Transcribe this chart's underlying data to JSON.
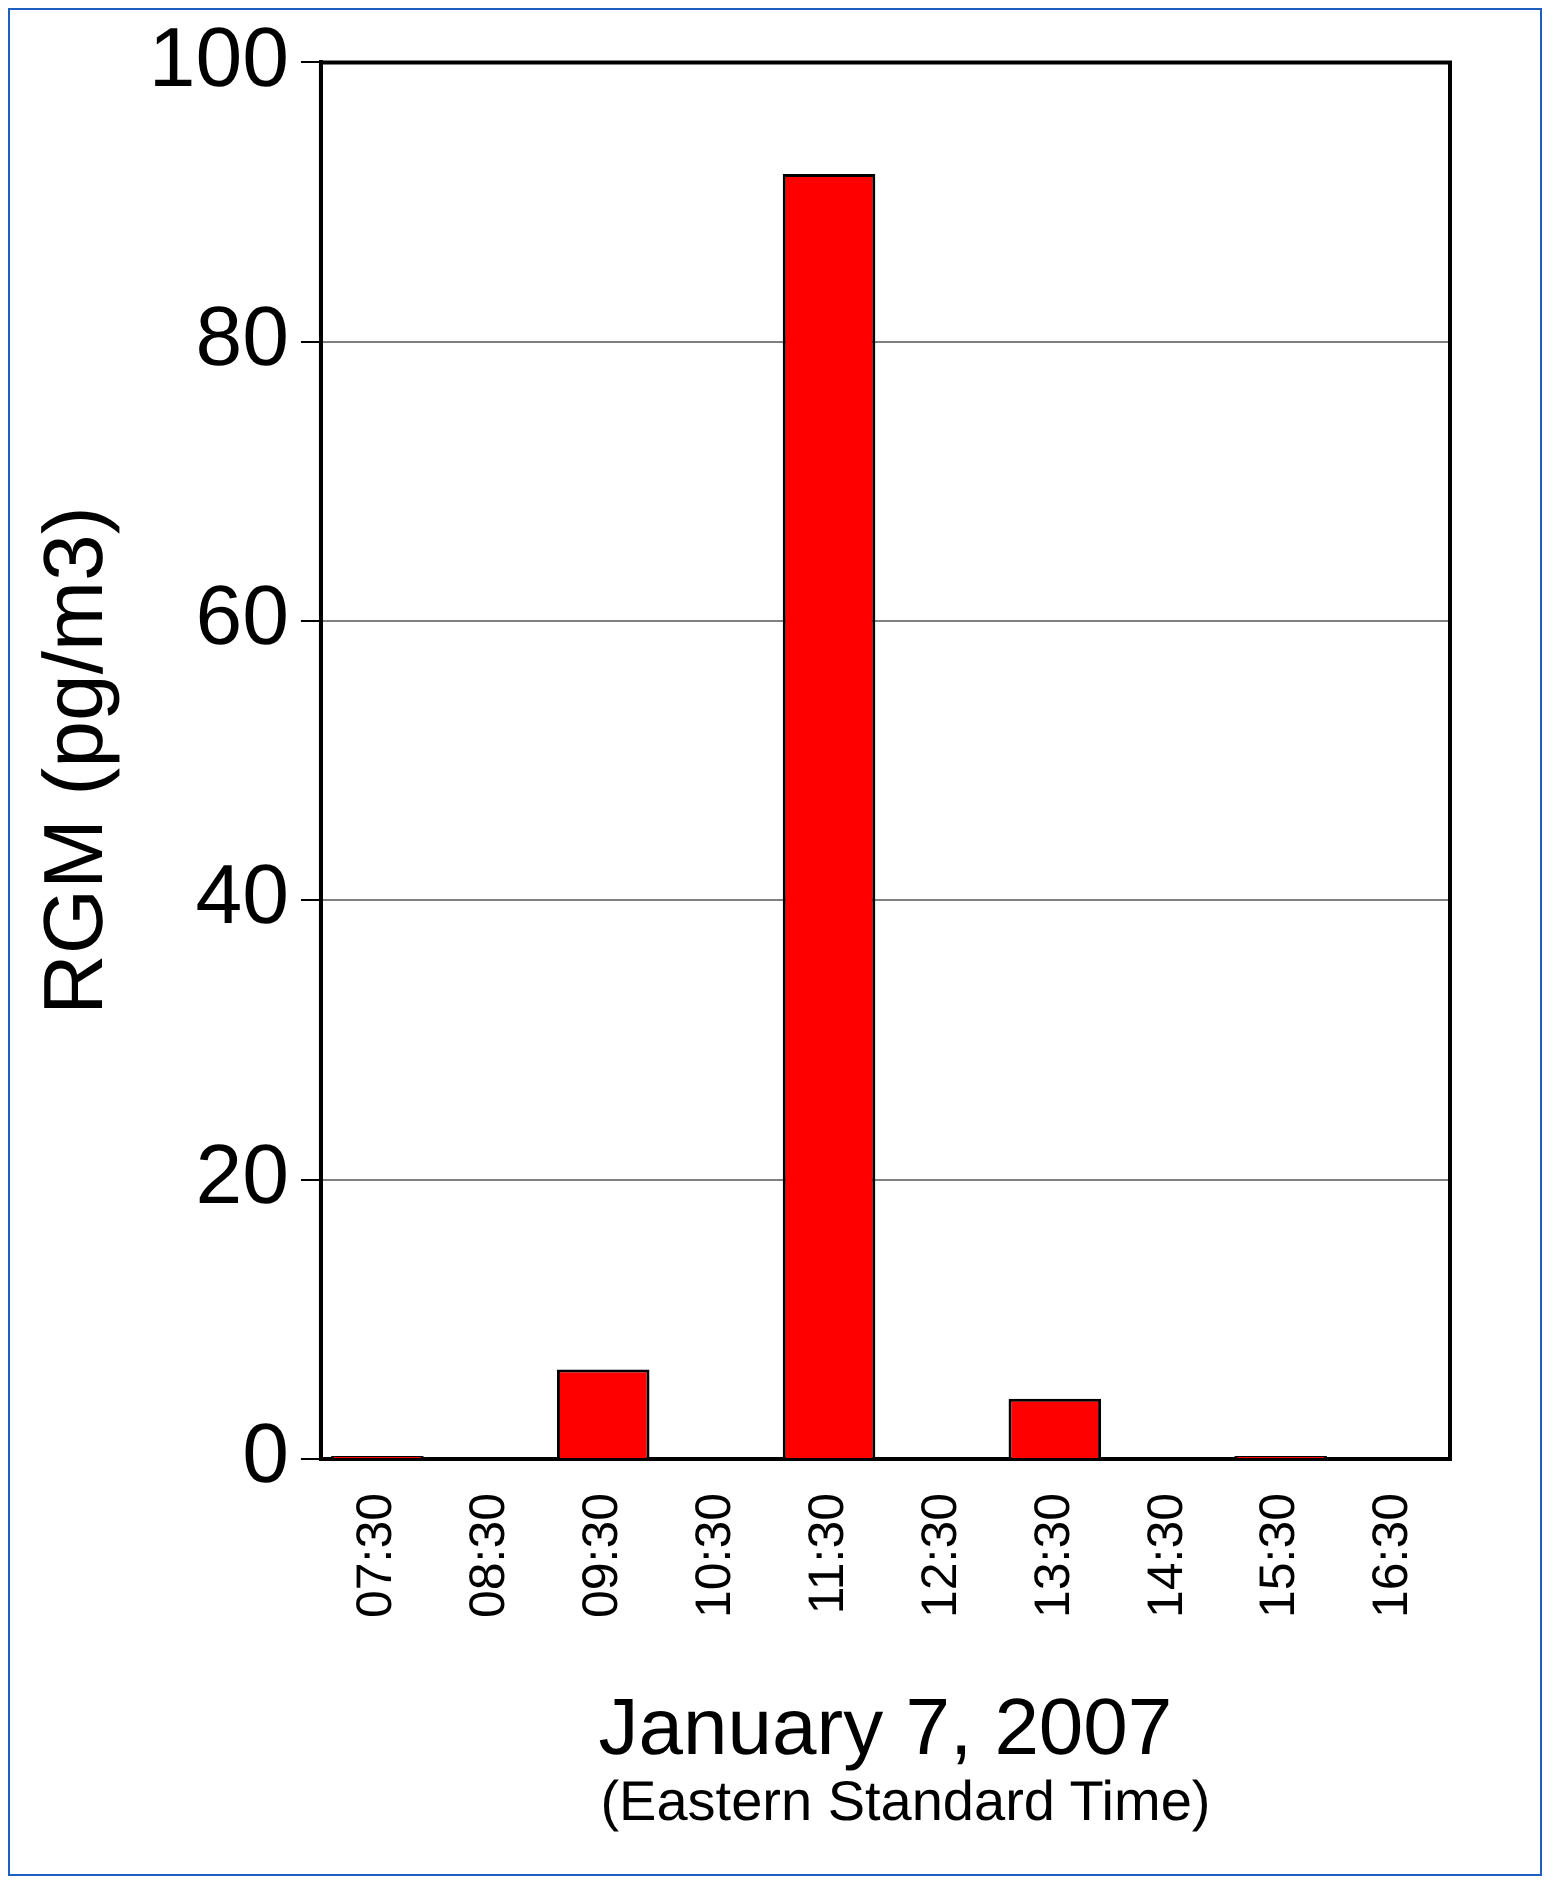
{
  "chart_data": {
    "type": "bar",
    "xlabel": "January 7, 2007",
    "ylabel": "RGM (pg/m3)",
    "annotations": [
      "(Eastern Standard Time)"
    ],
    "categories": [
      "07:30",
      "08:30",
      "09:30",
      "10:30",
      "11:30",
      "12:30",
      "13:30",
      "14:30",
      "15:30",
      "16:30"
    ],
    "values": [
      0.2,
      0,
      6.4,
      0,
      92,
      0,
      4.3,
      0,
      0.2,
      0
    ],
    "color": "#ff0000",
    "ylim": [
      0,
      100
    ],
    "yticks": [
      0,
      20,
      40,
      60,
      80,
      100
    ],
    "grid": "y",
    "legend": false
  }
}
